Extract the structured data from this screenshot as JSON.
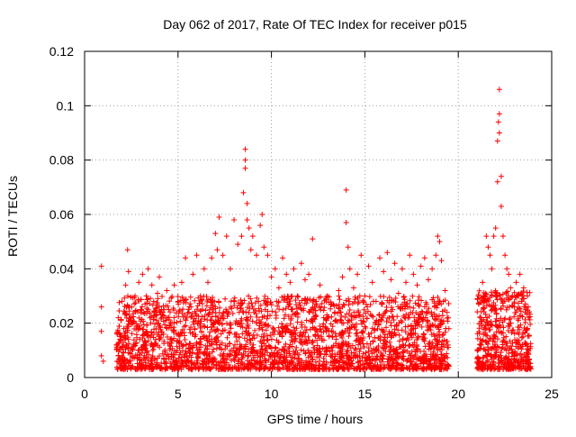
{
  "chart_data": {
    "type": "scatter",
    "title": "Day 062 of 2017, Rate Of TEC Index for receiver p015",
    "xlabel": "GPS time / hours",
    "ylabel": "ROTI / TECUs",
    "xlim": [
      0,
      25
    ],
    "ylim": [
      0,
      0.12
    ],
    "x_ticks": [
      0,
      5,
      10,
      15,
      20,
      25
    ],
    "y_ticks": [
      0,
      0.02,
      0.04,
      0.06,
      0.08,
      0.1,
      0.12
    ],
    "x_tick_labels": [
      "0",
      "5",
      "10",
      "15",
      "20",
      "25"
    ],
    "y_tick_labels": [
      "0",
      "0.02",
      "0.04",
      "0.06",
      "0.08",
      "0.1",
      "0.12"
    ],
    "grid": true,
    "legend": "none",
    "marker": "plus",
    "color": "#ff0000",
    "series": [
      {
        "x": [
          0.9,
          0.9,
          0.9,
          0.9,
          1.0,
          1.7,
          1.8,
          1.8,
          1.9,
          2.0,
          2.1,
          2.2,
          2.3,
          2.35,
          2.4,
          2.5,
          2.6,
          2.7,
          2.8,
          2.9,
          3.0,
          3.1,
          3.2,
          3.3,
          3.4,
          3.5,
          3.6,
          3.7,
          3.8,
          3.9,
          4.0,
          4.2,
          4.4,
          4.6,
          4.8,
          5.0,
          5.2,
          5.4,
          5.6,
          5.8,
          6.0,
          6.2,
          6.4,
          6.6,
          6.8,
          7.0,
          7.1,
          7.2,
          7.4,
          7.6,
          7.8,
          8.0,
          8.2,
          8.4,
          8.5,
          8.6,
          8.6,
          8.6,
          8.7,
          8.7,
          8.8,
          8.9,
          9.0,
          9.2,
          9.4,
          9.5,
          9.6,
          9.8,
          10.0,
          10.2,
          10.4,
          10.6,
          10.8,
          11.0,
          11.2,
          11.4,
          11.6,
          11.8,
          12.0,
          12.2,
          12.4,
          12.6,
          12.8,
          13.0,
          13.2,
          13.4,
          13.6,
          13.8,
          14.0,
          14.0,
          14.1,
          14.2,
          14.4,
          14.6,
          14.8,
          15.0,
          15.2,
          15.4,
          15.6,
          15.8,
          16.0,
          16.2,
          16.4,
          16.6,
          16.8,
          17.0,
          17.2,
          17.4,
          17.6,
          17.8,
          18.0,
          18.2,
          18.4,
          18.6,
          18.8,
          18.9,
          19.0,
          19.1,
          19.2,
          19.3,
          19.4,
          19.5,
          21.1,
          21.2,
          21.3,
          21.4,
          21.5,
          21.6,
          21.7,
          21.8,
          21.9,
          22.0,
          22.1,
          22.1,
          22.15,
          22.2,
          22.2,
          22.2,
          22.3,
          22.3,
          22.4,
          22.5,
          22.6,
          22.7,
          22.8,
          22.9,
          23.0,
          23.1,
          23.2,
          23.3,
          23.4,
          23.5,
          23.6,
          23.7
        ],
        "y": [
          0.041,
          0.026,
          0.017,
          0.008,
          0.006,
          0.012,
          0.022,
          0.008,
          0.015,
          0.028,
          0.018,
          0.034,
          0.047,
          0.039,
          0.026,
          0.022,
          0.012,
          0.03,
          0.019,
          0.035,
          0.025,
          0.038,
          0.016,
          0.03,
          0.04,
          0.022,
          0.034,
          0.028,
          0.014,
          0.031,
          0.037,
          0.024,
          0.032,
          0.02,
          0.034,
          0.028,
          0.035,
          0.044,
          0.026,
          0.038,
          0.045,
          0.03,
          0.04,
          0.035,
          0.044,
          0.053,
          0.047,
          0.059,
          0.045,
          0.052,
          0.04,
          0.058,
          0.049,
          0.052,
          0.068,
          0.084,
          0.08,
          0.077,
          0.064,
          0.058,
          0.055,
          0.047,
          0.052,
          0.045,
          0.056,
          0.06,
          0.048,
          0.045,
          0.037,
          0.04,
          0.033,
          0.044,
          0.038,
          0.035,
          0.04,
          0.03,
          0.042,
          0.036,
          0.038,
          0.051,
          0.028,
          0.034,
          0.022,
          0.03,
          0.027,
          0.024,
          0.032,
          0.037,
          0.069,
          0.057,
          0.048,
          0.04,
          0.033,
          0.038,
          0.045,
          0.03,
          0.041,
          0.035,
          0.028,
          0.044,
          0.039,
          0.046,
          0.036,
          0.042,
          0.031,
          0.04,
          0.035,
          0.045,
          0.038,
          0.034,
          0.041,
          0.044,
          0.036,
          0.04,
          0.045,
          0.052,
          0.05,
          0.043,
          0.028,
          0.032,
          0.024,
          0.018,
          0.027,
          0.022,
          0.035,
          0.028,
          0.052,
          0.048,
          0.045,
          0.04,
          0.052,
          0.055,
          0.072,
          0.087,
          0.094,
          0.106,
          0.097,
          0.09,
          0.074,
          0.063,
          0.052,
          0.045,
          0.04,
          0.038,
          0.033,
          0.03,
          0.026,
          0.035,
          0.03,
          0.038,
          0.028,
          0.033,
          0.025,
          0.03
        ]
      }
    ],
    "background_clusters": [
      {
        "x_range": [
          1.7,
          19.5
        ],
        "y_range": [
          0.003,
          0.03
        ],
        "count": 2600
      },
      {
        "x_range": [
          21.0,
          23.9
        ],
        "y_range": [
          0.003,
          0.032
        ],
        "count": 550
      }
    ]
  }
}
